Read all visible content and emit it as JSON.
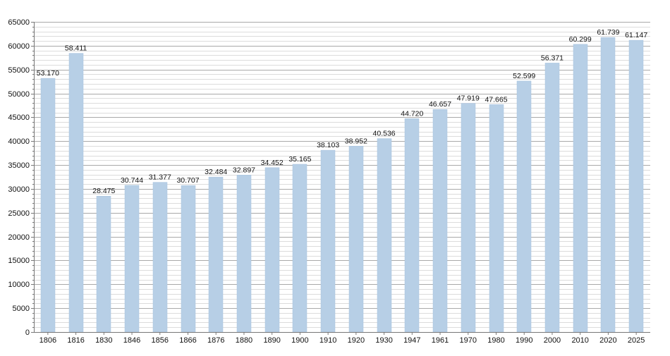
{
  "chart_data": {
    "type": "bar",
    "title": "",
    "xlabel": "",
    "ylabel": "",
    "grid": true,
    "ylim": [
      0,
      65000
    ],
    "y_ticks": [
      0,
      5000,
      10000,
      15000,
      20000,
      25000,
      30000,
      35000,
      40000,
      45000,
      50000,
      55000,
      60000,
      65000
    ],
    "y_tick_labels": [
      "0",
      "5000",
      "10000",
      "15000",
      "20000",
      "25000",
      "30000",
      "35000",
      "40000",
      "45000",
      "50000",
      "55000",
      "60000",
      "65000"
    ],
    "categories": [
      "1806",
      "1816",
      "1830",
      "1846",
      "1856",
      "1866",
      "1876",
      "1880",
      "1890",
      "1900",
      "1910",
      "1920",
      "1930",
      "1947",
      "1961",
      "1970",
      "1980",
      "1990",
      "2000",
      "2010",
      "2020",
      "2025"
    ],
    "values": [
      53170,
      58411,
      28475,
      30744,
      31377,
      30707,
      32484,
      32897,
      34452,
      35165,
      38103,
      38952,
      40536,
      44720,
      46657,
      47919,
      47665,
      52599,
      56371,
      60299,
      61739,
      61147
    ],
    "data_labels": [
      "53.170",
      "58.411",
      "28.475",
      "30.744",
      "31.377",
      "30.707",
      "32.484",
      "32.897",
      "34.452",
      "35.165",
      "38.103",
      "38.952",
      "40.536",
      "44.720",
      "46.657",
      "47.919",
      "47.665",
      "52.599",
      "56.371",
      "60.299",
      "61.739",
      "61.147"
    ],
    "colors": {
      "bar_fill": "#b7cfe6",
      "bar_stroke": "#a8c3df",
      "major_grid": "#a9a9a9",
      "minor_grid": "#dcdcdc",
      "axis": "#777777",
      "text": "#111111"
    }
  }
}
